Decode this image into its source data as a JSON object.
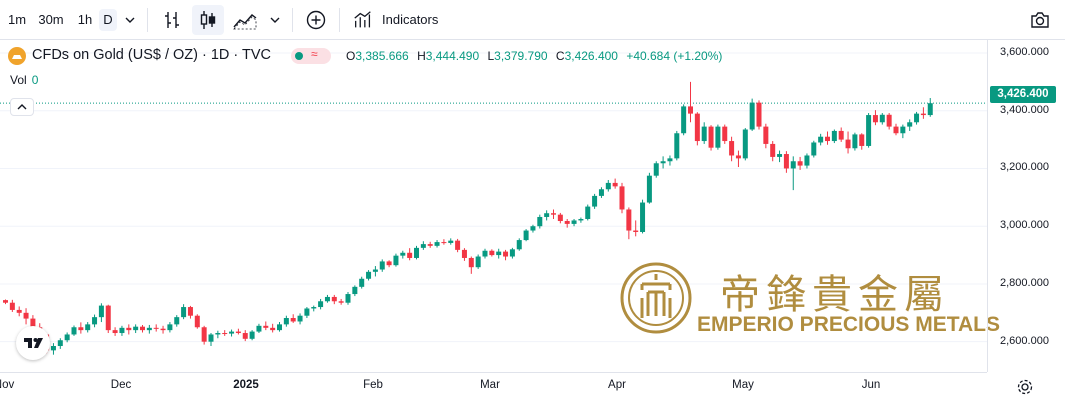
{
  "toolbar": {
    "intervals": [
      "1m",
      "30m",
      "1h",
      "D"
    ],
    "indicators_label": "Indicators"
  },
  "legend": {
    "symbol": "CFDs on Gold (US$ / OZ) · 1D · TVC",
    "open_key": "O",
    "open": "3,385.666",
    "high_key": "H",
    "high": "3,444.490",
    "low_key": "L",
    "low": "3,379.790",
    "close_key": "C",
    "close": "3,426.400",
    "change": "+40.684 (+1.20%)",
    "vol_label": "Vol",
    "vol_value": "0"
  },
  "price_badge": "3,426.400",
  "watermark": {
    "chinese": "帝鋒貴金屬",
    "english": "EMPERIO PRECIOUS METALS"
  },
  "colors": {
    "up": "#089981",
    "down": "#f23645",
    "watermark": "#b08d3f"
  },
  "chart_data": {
    "type": "candlestick",
    "y_axis": {
      "ticks": [
        "3,600.000",
        "3,400.000",
        "3,200.000",
        "3,000.000",
        "2,800.000",
        "2,600.000"
      ],
      "tick_values": [
        3600,
        3400,
        3200,
        3000,
        2800,
        2600
      ],
      "ylim": [
        2495,
        3645
      ]
    },
    "x_axis": {
      "ticks": [
        "Nov",
        "Dec",
        "2025",
        "Feb",
        "Mar",
        "Apr",
        "May",
        "Jun"
      ],
      "bold_ticks": [
        "2025"
      ]
    },
    "last_price": 3426.4,
    "candles": [
      [
        2744,
        2746,
        2730,
        2735
      ],
      [
        2735,
        2745,
        2703,
        2710
      ],
      [
        2710,
        2722,
        2688,
        2700
      ],
      [
        2700,
        2716,
        2660,
        2680
      ],
      [
        2680,
        2692,
        2638,
        2650
      ],
      [
        2650,
        2664,
        2612,
        2625
      ],
      [
        2625,
        2628,
        2560,
        2570
      ],
      [
        2570,
        2595,
        2555,
        2585
      ],
      [
        2585,
        2612,
        2575,
        2605
      ],
      [
        2605,
        2632,
        2598,
        2625
      ],
      [
        2625,
        2656,
        2620,
        2650
      ],
      [
        2650,
        2667,
        2628,
        2640
      ],
      [
        2640,
        2668,
        2632,
        2660
      ],
      [
        2660,
        2694,
        2650,
        2685
      ],
      [
        2685,
        2733,
        2668,
        2725
      ],
      [
        2725,
        2728,
        2630,
        2640
      ],
      [
        2640,
        2650,
        2620,
        2630
      ],
      [
        2630,
        2655,
        2620,
        2648
      ],
      [
        2648,
        2660,
        2625,
        2640
      ],
      [
        2640,
        2660,
        2630,
        2652
      ],
      [
        2652,
        2658,
        2632,
        2640
      ],
      [
        2640,
        2658,
        2628,
        2648
      ],
      [
        2648,
        2660,
        2635,
        2645
      ],
      [
        2645,
        2655,
        2628,
        2640
      ],
      [
        2640,
        2668,
        2632,
        2660
      ],
      [
        2660,
        2692,
        2652,
        2685
      ],
      [
        2685,
        2730,
        2678,
        2720
      ],
      [
        2720,
        2724,
        2680,
        2690
      ],
      [
        2690,
        2695,
        2645,
        2650
      ],
      [
        2650,
        2655,
        2590,
        2600
      ],
      [
        2600,
        2630,
        2585,
        2625
      ],
      [
        2625,
        2638,
        2612,
        2630
      ],
      [
        2630,
        2640,
        2620,
        2628
      ],
      [
        2628,
        2642,
        2618,
        2635
      ],
      [
        2635,
        2645,
        2625,
        2630
      ],
      [
        2630,
        2640,
        2602,
        2610
      ],
      [
        2610,
        2640,
        2605,
        2635
      ],
      [
        2635,
        2662,
        2630,
        2655
      ],
      [
        2655,
        2670,
        2640,
        2648
      ],
      [
        2648,
        2662,
        2632,
        2640
      ],
      [
        2640,
        2668,
        2635,
        2660
      ],
      [
        2660,
        2690,
        2652,
        2682
      ],
      [
        2682,
        2695,
        2665,
        2670
      ],
      [
        2670,
        2698,
        2660,
        2690
      ],
      [
        2690,
        2720,
        2682,
        2715
      ],
      [
        2715,
        2725,
        2705,
        2720
      ],
      [
        2720,
        2748,
        2712,
        2740
      ],
      [
        2740,
        2762,
        2735,
        2755
      ],
      [
        2755,
        2762,
        2730,
        2740
      ],
      [
        2740,
        2748,
        2728,
        2735
      ],
      [
        2735,
        2772,
        2728,
        2765
      ],
      [
        2765,
        2795,
        2758,
        2790
      ],
      [
        2790,
        2825,
        2784,
        2818
      ],
      [
        2818,
        2848,
        2812,
        2842
      ],
      [
        2842,
        2862,
        2826,
        2850
      ],
      [
        2850,
        2885,
        2842,
        2878
      ],
      [
        2878,
        2882,
        2858,
        2865
      ],
      [
        2865,
        2905,
        2860,
        2898
      ],
      [
        2898,
        2915,
        2888,
        2908
      ],
      [
        2908,
        2924,
        2882,
        2890
      ],
      [
        2890,
        2932,
        2885,
        2925
      ],
      [
        2925,
        2948,
        2918,
        2938
      ],
      [
        2938,
        2946,
        2925,
        2932
      ],
      [
        2932,
        2952,
        2926,
        2945
      ],
      [
        2945,
        2955,
        2936,
        2942
      ],
      [
        2942,
        2958,
        2936,
        2950
      ],
      [
        2950,
        2956,
        2910,
        2918
      ],
      [
        2918,
        2924,
        2880,
        2890
      ],
      [
        2890,
        2895,
        2835,
        2858
      ],
      [
        2858,
        2902,
        2852,
        2895
      ],
      [
        2895,
        2922,
        2888,
        2915
      ],
      [
        2915,
        2920,
        2895,
        2900
      ],
      [
        2900,
        2922,
        2888,
        2912
      ],
      [
        2912,
        2918,
        2882,
        2895
      ],
      [
        2895,
        2925,
        2888,
        2920
      ],
      [
        2920,
        2958,
        2915,
        2952
      ],
      [
        2952,
        2990,
        2948,
        2985
      ],
      [
        2985,
        3005,
        2978,
        3000
      ],
      [
        3000,
        3040,
        2992,
        3032
      ],
      [
        3032,
        3055,
        3020,
        3045
      ],
      [
        3045,
        3058,
        3025,
        3040
      ],
      [
        3040,
        3046,
        3010,
        3018
      ],
      [
        3018,
        3025,
        2995,
        3008
      ],
      [
        3008,
        3025,
        3000,
        3020
      ],
      [
        3020,
        3030,
        3012,
        3025
      ],
      [
        3025,
        3075,
        3020,
        3068
      ],
      [
        3068,
        3112,
        3060,
        3105
      ],
      [
        3105,
        3135,
        3098,
        3128
      ],
      [
        3128,
        3160,
        3120,
        3150
      ],
      [
        3150,
        3165,
        3130,
        3138
      ],
      [
        3138,
        3150,
        3045,
        3058
      ],
      [
        3058,
        3065,
        2955,
        2985
      ],
      [
        2985,
        3020,
        2965,
        2980
      ],
      [
        2980,
        3092,
        2975,
        3082
      ],
      [
        3082,
        3185,
        3078,
        3175
      ],
      [
        3175,
        3225,
        3168,
        3218
      ],
      [
        3218,
        3242,
        3200,
        3225
      ],
      [
        3225,
        3245,
        3210,
        3235
      ],
      [
        3235,
        3330,
        3228,
        3322
      ],
      [
        3322,
        3422,
        3315,
        3415
      ],
      [
        3415,
        3500,
        3360,
        3390
      ],
      [
        3390,
        3395,
        3280,
        3295
      ],
      [
        3295,
        3360,
        3285,
        3345
      ],
      [
        3345,
        3350,
        3262,
        3272
      ],
      [
        3272,
        3352,
        3265,
        3345
      ],
      [
        3345,
        3352,
        3285,
        3295
      ],
      [
        3295,
        3310,
        3225,
        3245
      ],
      [
        3245,
        3262,
        3205,
        3235
      ],
      [
        3235,
        3340,
        3228,
        3335
      ],
      [
        3335,
        3442,
        3330,
        3428
      ],
      [
        3428,
        3436,
        3335,
        3345
      ],
      [
        3345,
        3355,
        3270,
        3285
      ],
      [
        3285,
        3295,
        3225,
        3240
      ],
      [
        3240,
        3262,
        3222,
        3250
      ],
      [
        3250,
        3260,
        3185,
        3200
      ],
      [
        3200,
        3242,
        3125,
        3225
      ],
      [
        3225,
        3240,
        3195,
        3210
      ],
      [
        3210,
        3252,
        3200,
        3245
      ],
      [
        3245,
        3296,
        3238,
        3290
      ],
      [
        3290,
        3320,
        3280,
        3310
      ],
      [
        3310,
        3328,
        3282,
        3295
      ],
      [
        3295,
        3335,
        3288,
        3330
      ],
      [
        3330,
        3342,
        3292,
        3300
      ],
      [
        3300,
        3328,
        3252,
        3270
      ],
      [
        3270,
        3324,
        3262,
        3318
      ],
      [
        3318,
        3322,
        3265,
        3278
      ],
      [
        3278,
        3392,
        3272,
        3385
      ],
      [
        3385,
        3402,
        3350,
        3360
      ],
      [
        3360,
        3392,
        3352,
        3386
      ],
      [
        3386,
        3392,
        3335,
        3345
      ],
      [
        3345,
        3355,
        3315,
        3322
      ],
      [
        3322,
        3352,
        3305,
        3345
      ],
      [
        3345,
        3370,
        3330,
        3360
      ],
      [
        3360,
        3396,
        3352,
        3390
      ],
      [
        3390,
        3412,
        3372,
        3385
      ],
      [
        3385,
        3444,
        3379,
        3426
      ]
    ]
  }
}
